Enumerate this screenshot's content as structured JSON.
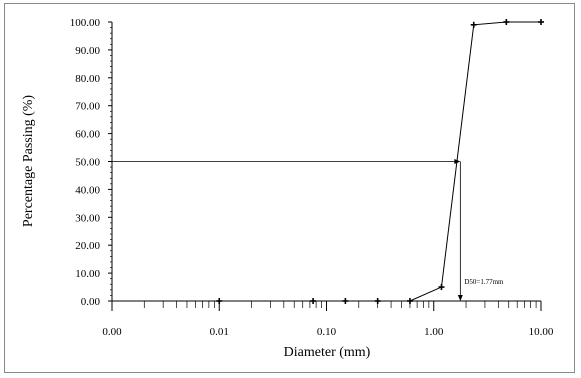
{
  "chart_data": {
    "type": "line",
    "xlabel": "Diameter (mm)",
    "ylabel": "Percentage Passing (%)",
    "x_scale": "log",
    "x_tick_labels": [
      "0.00",
      "0.01",
      "0.10",
      "1.00",
      "10.00"
    ],
    "y_tick_labels": [
      "0.00",
      "10.00",
      "20.00",
      "30.00",
      "40.00",
      "50.00",
      "60.00",
      "70.00",
      "80.00",
      "90.00",
      "100.00"
    ],
    "ylim": [
      0,
      100
    ],
    "grid": false,
    "series": [
      {
        "x": [
          0.01,
          0.075,
          0.15,
          0.3,
          0.6,
          1.18,
          2.36,
          4.75,
          10
        ],
        "y": [
          0,
          0,
          0,
          0,
          0,
          5,
          99,
          100,
          100
        ]
      }
    ],
    "annotation": {
      "text": "D50=1.77mm",
      "d50": 1.77,
      "y": 50
    }
  }
}
